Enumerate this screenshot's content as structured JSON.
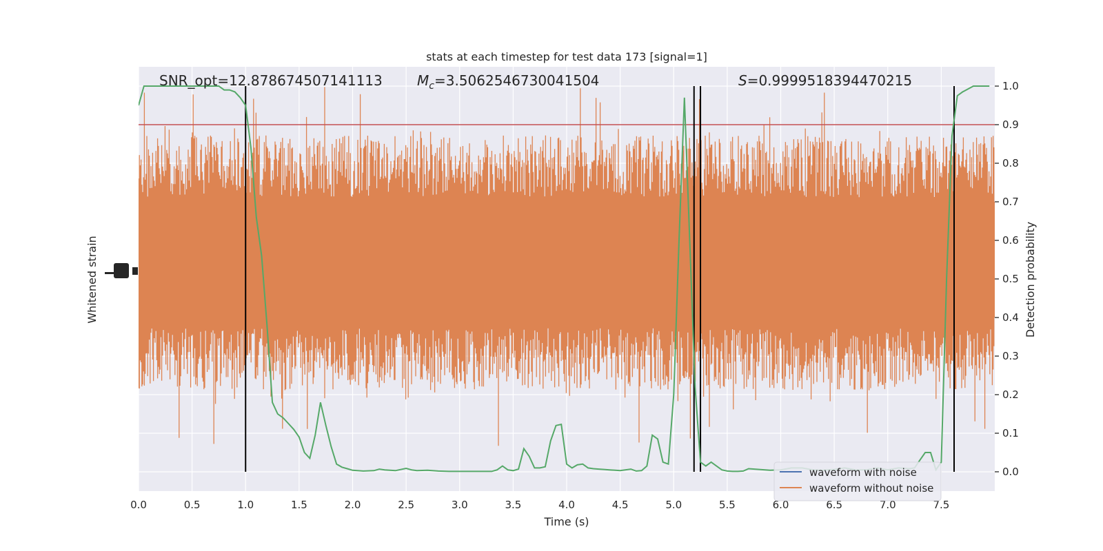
{
  "chart_data": {
    "type": "line",
    "title": "stats at each timestep for test data 173 [signal=1]",
    "xlabel": "Time (s)",
    "ylabel_left": "Whitened strain",
    "ylabel_right": "Detection probability",
    "xlim": [
      0.0,
      8.0
    ],
    "ylim_right": [
      -0.05,
      1.05
    ],
    "xticks": [
      "0.0",
      "0.5",
      "1.0",
      "1.5",
      "2.0",
      "2.5",
      "3.0",
      "3.5",
      "4.0",
      "4.5",
      "5.0",
      "5.5",
      "6.0",
      "6.5",
      "7.0",
      "7.5"
    ],
    "xtick_values": [
      0.0,
      0.5,
      1.0,
      1.5,
      2.0,
      2.5,
      3.0,
      3.5,
      4.0,
      4.5,
      5.0,
      5.5,
      6.0,
      6.5,
      7.0,
      7.5
    ],
    "yticks_right": [
      "0.0",
      "0.1",
      "0.2",
      "0.3",
      "0.4",
      "0.5",
      "0.6",
      "0.7",
      "0.8",
      "0.9",
      "1.0"
    ],
    "ytick_right_values": [
      0.0,
      0.1,
      0.2,
      0.3,
      0.4,
      0.5,
      0.6,
      0.7,
      0.8,
      0.9,
      1.0
    ],
    "annotations": {
      "snr": "SNR_opt=12.878674507141113",
      "mc_symbol": "M",
      "mc_sub": "c",
      "mc_value": "=3.5062546730041504",
      "s_symbol": "S",
      "s_value": "=0.9999518394470215"
    },
    "threshold": 0.9,
    "vlines": [
      1.0,
      5.19,
      5.25,
      7.62
    ],
    "legend": {
      "position": "lower right",
      "entries": [
        "waveform with noise",
        "waveform without noise"
      ]
    },
    "grid": true,
    "colors": {
      "background": "#eaeaf2",
      "noise_waveform": "#4c72b0",
      "clean_waveform": "#dd8452",
      "probability": "#55a868",
      "threshold": "#c44e52",
      "vline": "#000000"
    },
    "probability_series": {
      "name": "Detection probability",
      "x": [
        0.0,
        0.05,
        0.1,
        0.15,
        0.2,
        0.25,
        0.3,
        0.35,
        0.4,
        0.45,
        0.5,
        0.55,
        0.6,
        0.65,
        0.7,
        0.75,
        0.8,
        0.85,
        0.9,
        0.95,
        1.0,
        1.05,
        1.1,
        1.15,
        1.2,
        1.25,
        1.3,
        1.35,
        1.4,
        1.45,
        1.5,
        1.55,
        1.6,
        1.65,
        1.7,
        1.75,
        1.8,
        1.85,
        1.9,
        1.95,
        2.0,
        2.1,
        2.2,
        2.25,
        2.3,
        2.4,
        2.5,
        2.55,
        2.6,
        2.7,
        2.8,
        2.9,
        3.0,
        3.1,
        3.2,
        3.3,
        3.35,
        3.4,
        3.45,
        3.5,
        3.55,
        3.6,
        3.65,
        3.7,
        3.75,
        3.8,
        3.85,
        3.9,
        3.95,
        4.0,
        4.05,
        4.1,
        4.15,
        4.2,
        4.25,
        4.3,
        4.35,
        4.4,
        4.5,
        4.6,
        4.65,
        4.7,
        4.75,
        4.8,
        4.85,
        4.9,
        4.95,
        5.0,
        5.05,
        5.1,
        5.15,
        5.2,
        5.25,
        5.3,
        5.35,
        5.4,
        5.45,
        5.5,
        5.55,
        5.6,
        5.65,
        5.7,
        5.8,
        5.9,
        6.0,
        6.1,
        6.2,
        6.3,
        6.4,
        6.5,
        6.6,
        6.7,
        6.8,
        6.9,
        7.0,
        7.1,
        7.2,
        7.25,
        7.3,
        7.35,
        7.4,
        7.45,
        7.5,
        7.55,
        7.6,
        7.65,
        7.7,
        7.8,
        7.85,
        7.9,
        7.95
      ],
      "y": [
        0.95,
        1.0,
        1.0,
        1.0,
        1.0,
        1.0,
        1.0,
        1.0,
        1.0,
        1.0,
        1.0,
        1.0,
        1.0,
        1.0,
        1.0,
        1.0,
        0.99,
        0.99,
        0.985,
        0.97,
        0.95,
        0.84,
        0.66,
        0.56,
        0.38,
        0.18,
        0.15,
        0.14,
        0.125,
        0.11,
        0.09,
        0.05,
        0.035,
        0.095,
        0.18,
        0.12,
        0.065,
        0.02,
        0.012,
        0.008,
        0.004,
        0.002,
        0.003,
        0.007,
        0.005,
        0.003,
        0.009,
        0.005,
        0.003,
        0.004,
        0.002,
        0.001,
        0.001,
        0.001,
        0.001,
        0.001,
        0.005,
        0.015,
        0.005,
        0.003,
        0.007,
        0.06,
        0.04,
        0.01,
        0.01,
        0.013,
        0.08,
        0.12,
        0.123,
        0.02,
        0.01,
        0.018,
        0.02,
        0.01,
        0.008,
        0.007,
        0.006,
        0.005,
        0.003,
        0.007,
        0.002,
        0.003,
        0.015,
        0.095,
        0.085,
        0.025,
        0.02,
        0.2,
        0.6,
        0.97,
        0.6,
        0.22,
        0.025,
        0.015,
        0.025,
        0.015,
        0.005,
        0.002,
        0.001,
        0.001,
        0.002,
        0.008,
        0.006,
        0.004,
        0.005,
        0.01,
        0.01,
        0.005,
        0.004,
        0.006,
        0.01,
        0.005,
        0.005,
        0.01,
        0.005,
        0.01,
        0.008,
        0.01,
        0.03,
        0.05,
        0.05,
        0.005,
        0.025,
        0.5,
        0.87,
        0.975,
        0.985,
        1.0,
        1.0,
        1.0,
        1.0
      ]
    },
    "clean_waveform_band": {
      "name": "waveform without noise",
      "core_range": [
        0.4,
        0.7
      ],
      "typical_range": [
        0.3,
        0.8
      ],
      "spike_max": 1.0,
      "spike_min": 0.0
    }
  }
}
